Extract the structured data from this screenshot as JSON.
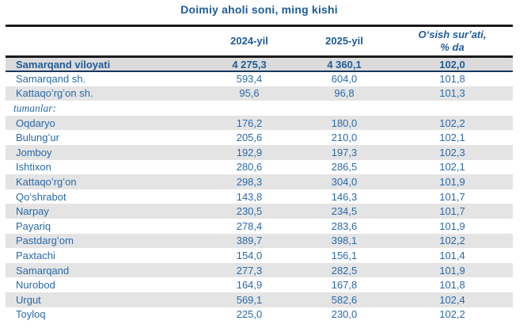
{
  "title": "Doimiy aholi soni, ming kishi",
  "colors": {
    "text_blue": "#2a6aab",
    "bold_blue": "#1f5c99",
    "stripe_bg": "#e4e4e4",
    "total_row_bg": "#dbdbdb",
    "rule_black": "#1a1a1a",
    "rule_navy": "#17375e"
  },
  "table": {
    "header": {
      "col_name": "",
      "col_2024": "2024-yil",
      "col_2025": "2025-yil",
      "col_growth_line1": "Oʻsish surʼati,",
      "col_growth_line2": "% da"
    },
    "rows": [
      {
        "label": "Samarqand viloyati",
        "y2024": "4 275,3",
        "y2025": "4 360,1",
        "growth": "102,0",
        "type": "total",
        "shaded": false
      },
      {
        "label": "Samarqand sh.",
        "y2024": "593,4",
        "y2025": "604,0",
        "growth": "101,8",
        "type": "city",
        "shaded": false
      },
      {
        "label": "Kattaqoʻrgʻon sh.",
        "y2024": "95,6",
        "y2025": "96,8",
        "growth": "101,3",
        "type": "city",
        "shaded": true
      },
      {
        "label": "tumanlar:",
        "y2024": "",
        "y2025": "",
        "growth": "",
        "type": "section",
        "shaded": false
      },
      {
        "label": "Oqdaryo",
        "y2024": "176,2",
        "y2025": "180,0",
        "growth": "102,2",
        "type": "district",
        "shaded": true
      },
      {
        "label": "Bulungʻur",
        "y2024": "205,6",
        "y2025": "210,0",
        "growth": "102,1",
        "type": "district",
        "shaded": false
      },
      {
        "label": "Jomboy",
        "y2024": "192,9",
        "y2025": "197,3",
        "growth": "102,3",
        "type": "district",
        "shaded": true
      },
      {
        "label": "Ishtixon",
        "y2024": "280,6",
        "y2025": "286,5",
        "growth": "102,1",
        "type": "district",
        "shaded": false
      },
      {
        "label": "Kattaqoʻrgʻon",
        "y2024": "298,3",
        "y2025": "304,0",
        "growth": "101,9",
        "type": "district",
        "shaded": true
      },
      {
        "label": "Qoʻshrabot",
        "y2024": "143,8",
        "y2025": "146,3",
        "growth": "101,7",
        "type": "district",
        "shaded": false
      },
      {
        "label": "Narpay",
        "y2024": "230,5",
        "y2025": "234,5",
        "growth": "101,7",
        "type": "district",
        "shaded": true
      },
      {
        "label": "Payariq",
        "y2024": "278,4",
        "y2025": "283,6",
        "growth": "101,9",
        "type": "district",
        "shaded": false
      },
      {
        "label": "Pastdargʻom",
        "y2024": "389,7",
        "y2025": "398,1",
        "growth": "102,2",
        "type": "district",
        "shaded": true
      },
      {
        "label": "Paxtachi",
        "y2024": "154,0",
        "y2025": "156,1",
        "growth": "101,4",
        "type": "district",
        "shaded": false
      },
      {
        "label": "Samarqand",
        "y2024": "277,3",
        "y2025": "282,5",
        "growth": "101,9",
        "type": "district",
        "shaded": true
      },
      {
        "label": "Nurobod",
        "y2024": "164,9",
        "y2025": "167,8",
        "growth": "101,8",
        "type": "district",
        "shaded": false
      },
      {
        "label": "Urgut",
        "y2024": "569,1",
        "y2025": "582,6",
        "growth": "102,4",
        "type": "district",
        "shaded": true
      },
      {
        "label": "Toyloq",
        "y2024": "225,0",
        "y2025": "230,0",
        "growth": "102,2",
        "type": "district",
        "shaded": false
      }
    ]
  }
}
